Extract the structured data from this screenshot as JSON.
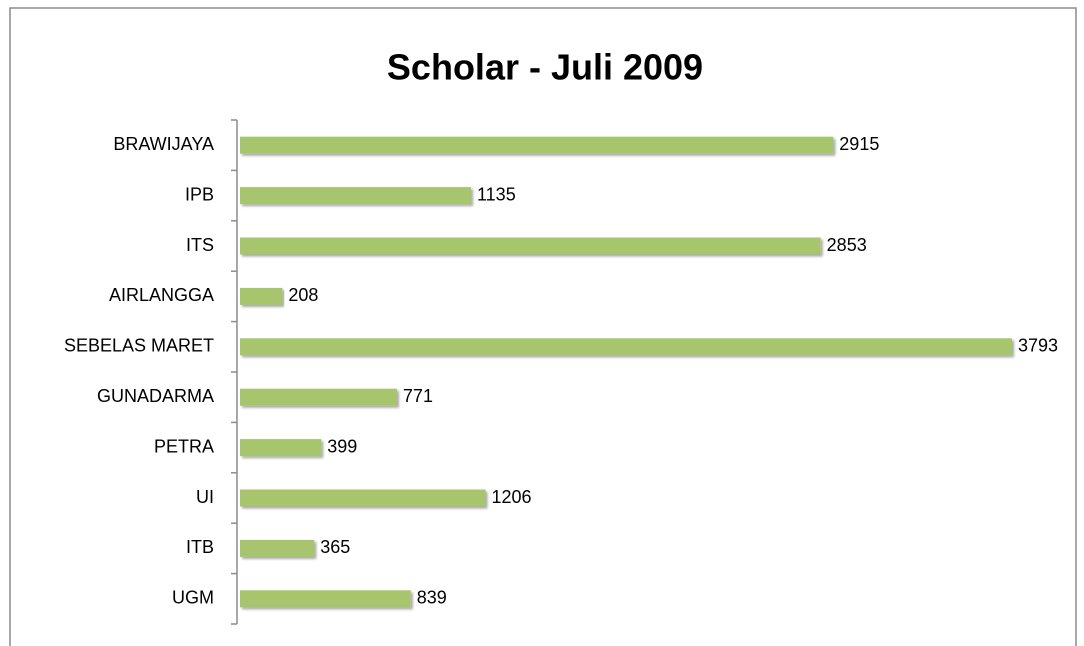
{
  "chart_data": {
    "type": "bar",
    "orientation": "horizontal",
    "title": "Scholar - Juli 2009",
    "categories": [
      "BRAWIJAYA",
      "IPB",
      "ITS",
      "AIRLANGGA",
      "SEBELAS MARET",
      "GUNADARMA",
      "PETRA",
      "UI",
      "ITB",
      "UGM"
    ],
    "values": [
      2915,
      1135,
      2853,
      208,
      3793,
      771,
      399,
      1206,
      365,
      839
    ],
    "color": "#a6c56d"
  }
}
